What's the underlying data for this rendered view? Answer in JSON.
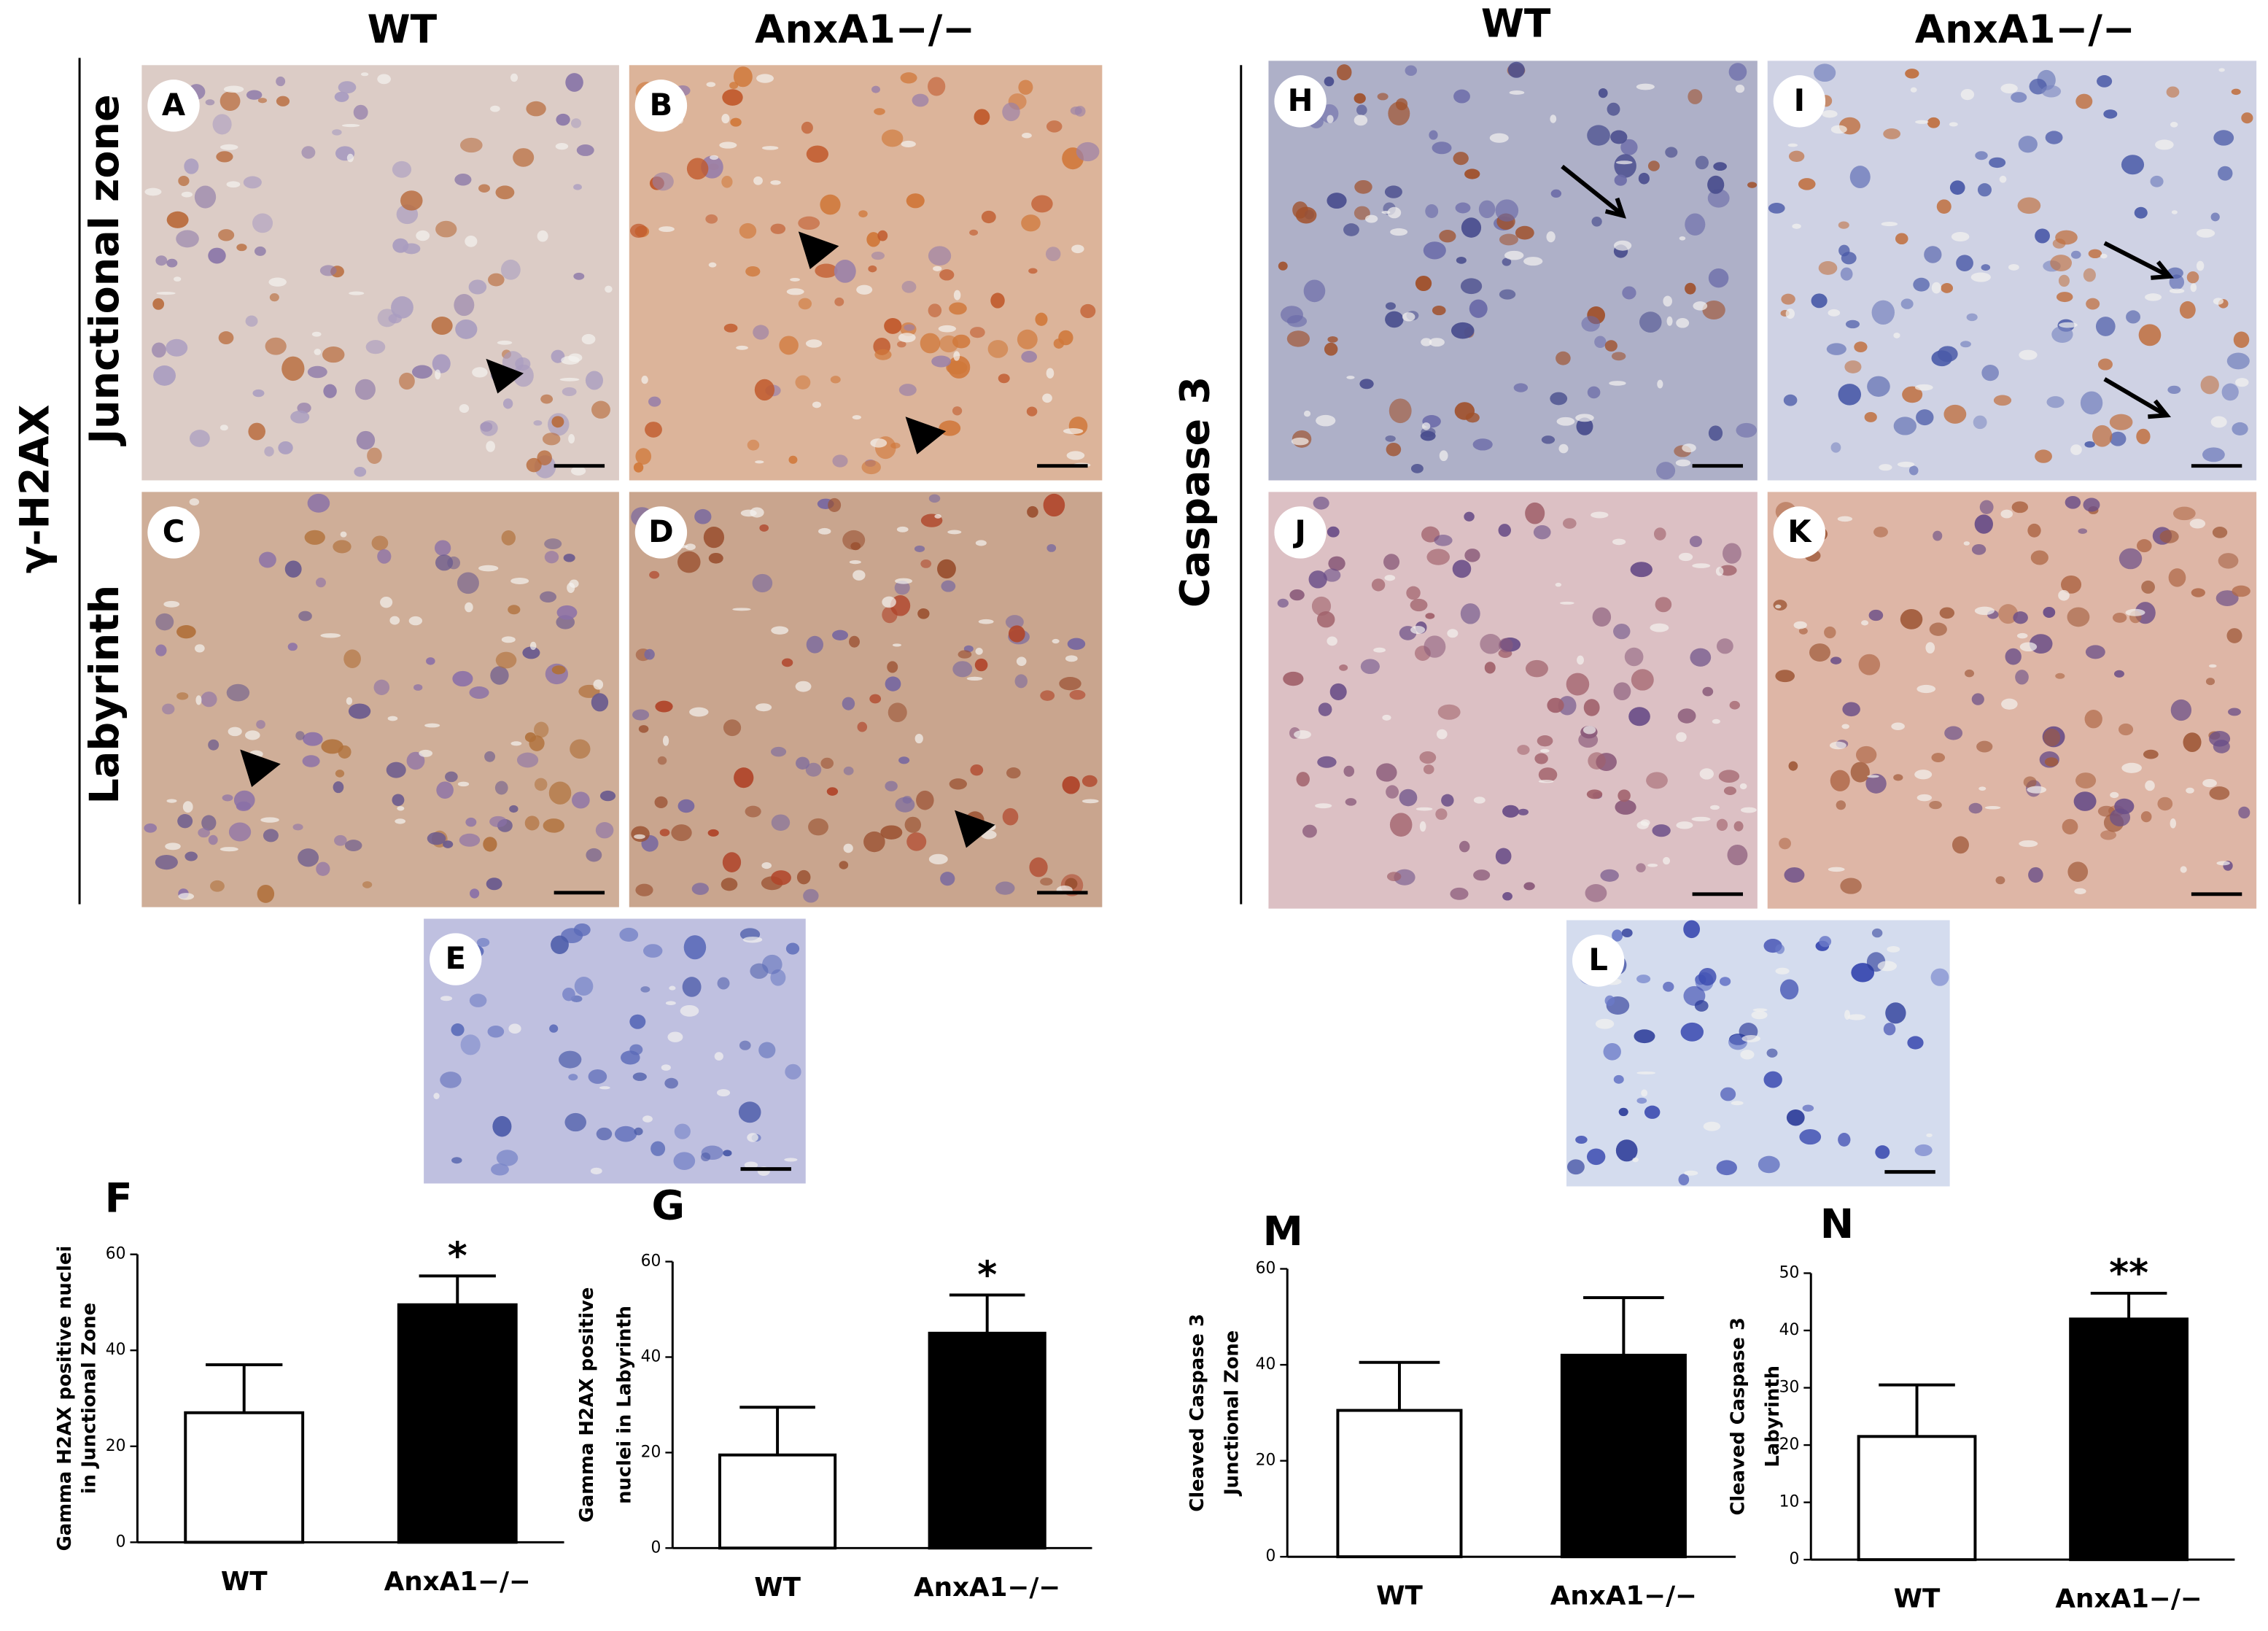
{
  "column_headings": [
    "WT",
    "AnxA1−/−",
    "WT",
    "AnxA1−/−"
  ],
  "row_labels": {
    "stain_left": "γ-H2AX",
    "junctional": "Junctional zone",
    "labyrinth": "Labyrinth",
    "stain_right": "Caspase 3"
  },
  "panel_letters": [
    "A",
    "B",
    "C",
    "D",
    "E",
    "H",
    "I",
    "J",
    "K",
    "L"
  ],
  "chart_data": [
    {
      "type": "bar",
      "panel": "F",
      "ylabel": [
        "Gamma H2AX positive nuclei",
        "in Junctional Zone"
      ],
      "categories": [
        "WT",
        "AnxA1−/−"
      ],
      "values": [
        27,
        49.5
      ],
      "errors": [
        10,
        6
      ],
      "colors": [
        "#ffffff",
        "#000000"
      ],
      "significance": [
        null,
        "*"
      ],
      "ylim": [
        0,
        60
      ],
      "yticks": [
        0,
        20,
        40,
        60
      ]
    },
    {
      "type": "bar",
      "panel": "G",
      "ylabel": [
        "Gamma H2AX positive",
        "nuclei in Labyrinth"
      ],
      "categories": [
        "WT",
        "AnxA1−/−"
      ],
      "values": [
        19.5,
        45
      ],
      "errors": [
        10,
        8
      ],
      "colors": [
        "#ffffff",
        "#000000"
      ],
      "significance": [
        null,
        "*"
      ],
      "ylim": [
        0,
        60
      ],
      "yticks": [
        0,
        20,
        40,
        60
      ]
    },
    {
      "type": "bar",
      "panel": "M",
      "ylabel": [
        "Cleaved Caspase 3",
        "Junctional Zone"
      ],
      "categories": [
        "WT",
        "AnxA1−/−"
      ],
      "values": [
        30.5,
        42
      ],
      "errors": [
        10,
        12
      ],
      "colors": [
        "#ffffff",
        "#000000"
      ],
      "ylim": [
        0,
        60
      ],
      "yticks": [
        0,
        20,
        40,
        60
      ]
    },
    {
      "type": "bar",
      "panel": "N",
      "ylabel": [
        "Cleaved Caspase 3",
        "Labyrinth"
      ],
      "categories": [
        "WT",
        "AnxA1−/−"
      ],
      "values": [
        21.5,
        42
      ],
      "errors": [
        9,
        4.5
      ],
      "colors": [
        "#ffffff",
        "#000000"
      ],
      "significance": [
        null,
        "**"
      ],
      "ylim": [
        0,
        50
      ],
      "yticks": [
        0,
        10,
        20,
        30,
        40,
        50
      ]
    }
  ]
}
